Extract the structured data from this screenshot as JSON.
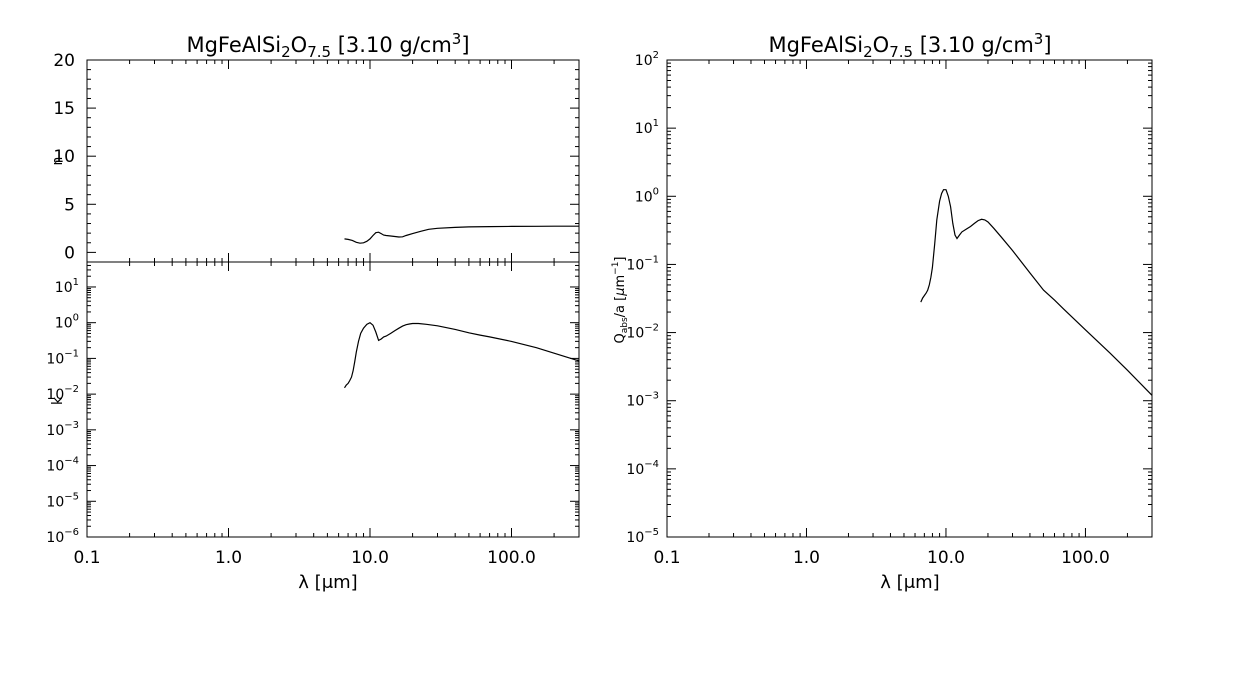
{
  "chart_data": [
    {
      "type": "line",
      "title": "MgFeAlSi2O7.5 [3.10 g/cm3]",
      "title_parts": {
        "pre": "MgFeAlSi",
        "sub1": "2",
        "mid": "O",
        "sub2": "7.5",
        "post": " [3.10 g/cm",
        "sup": "3",
        "end": "]"
      },
      "ylabel": "n",
      "xscale": "log",
      "xlim": [
        0.1,
        300
      ],
      "ylim": [
        -1,
        20
      ],
      "yticks": [
        0,
        5,
        10,
        15,
        20
      ],
      "ytick_labels": [
        "0",
        "5",
        "10",
        "15",
        "20"
      ],
      "series": [
        {
          "x": [
            6.6,
            7.0,
            7.5,
            8.0,
            8.5,
            9.0,
            9.5,
            10.0,
            10.5,
            11.0,
            11.5,
            12.0,
            12.5,
            13.0,
            14.0,
            15.0,
            16.0,
            17.0,
            18.0,
            20.0,
            23.0,
            26.0,
            30.0,
            40.0,
            50.0,
            70.0,
            100.0,
            150.0,
            200.0,
            300.0
          ],
          "y": [
            1.4,
            1.35,
            1.25,
            1.05,
            0.95,
            1.0,
            1.15,
            1.4,
            1.75,
            2.05,
            2.1,
            1.95,
            1.8,
            1.75,
            1.7,
            1.65,
            1.6,
            1.62,
            1.75,
            1.95,
            2.2,
            2.4,
            2.5,
            2.6,
            2.65,
            2.68,
            2.7,
            2.71,
            2.72,
            2.72
          ]
        }
      ]
    },
    {
      "type": "line",
      "xlabel": "λ [μm]",
      "ylabel": "k",
      "xscale": "log",
      "yscale": "log",
      "xlim": [
        0.1,
        300
      ],
      "ylim": [
        1e-06,
        50
      ],
      "xtick_labels": [
        "0.1",
        "1.0",
        "10.0",
        "100.0"
      ],
      "xticks": [
        0.1,
        1,
        10,
        100
      ],
      "yticks": [
        1e-06,
        1e-05,
        0.0001,
        0.001,
        0.01,
        0.1,
        1,
        10
      ],
      "ytick_labels": [
        {
          "b": "10",
          "e": "−6"
        },
        {
          "b": "10",
          "e": "−5"
        },
        {
          "b": "10",
          "e": "−4"
        },
        {
          "b": "10",
          "e": "−3"
        },
        {
          "b": "10",
          "e": "−2"
        },
        {
          "b": "10",
          "e": "−1"
        },
        {
          "b": "10",
          "e": "0"
        },
        {
          "b": "10",
          "e": "1"
        }
      ],
      "series": [
        {
          "x": [
            6.6,
            6.8,
            7.0,
            7.2,
            7.4,
            7.6,
            7.8,
            8.0,
            8.3,
            8.6,
            9.0,
            9.5,
            10.0,
            10.5,
            11.0,
            11.5,
            12.0,
            12.5,
            13.0,
            14.0,
            15.0,
            16.0,
            17.0,
            18.0,
            19.0,
            20.0,
            22.0,
            25.0,
            30.0,
            40.0,
            50.0,
            60.0,
            70.0,
            100.0,
            150.0,
            200.0,
            300.0
          ],
          "y": [
            0.015,
            0.018,
            0.02,
            0.024,
            0.03,
            0.045,
            0.08,
            0.15,
            0.3,
            0.5,
            0.7,
            0.9,
            1.0,
            0.85,
            0.55,
            0.32,
            0.35,
            0.4,
            0.42,
            0.5,
            0.6,
            0.7,
            0.8,
            0.88,
            0.92,
            0.95,
            0.95,
            0.9,
            0.82,
            0.65,
            0.52,
            0.45,
            0.4,
            0.3,
            0.2,
            0.14,
            0.085
          ]
        }
      ]
    },
    {
      "type": "line",
      "title": "MgFeAlSi2O7.5 [3.10 g/cm3]",
      "title_parts": {
        "pre": "MgFeAlSi",
        "sub1": "2",
        "mid": "O",
        "sub2": "7.5",
        "post": " [3.10 g/cm",
        "sup": "3",
        "end": "]"
      },
      "xlabel": "λ [μm]",
      "ylabel": "Qabs/a [μm−1]",
      "ylabel_parts": {
        "pre": "Q",
        "sub": "abs",
        "mid": "/a [",
        "mu": "μ",
        "unit": "m",
        "sup": "−1",
        "end": "]"
      },
      "xscale": "log",
      "yscale": "log",
      "xlim": [
        0.1,
        300
      ],
      "ylim": [
        1e-05,
        100
      ],
      "xtick_labels": [
        "0.1",
        "1.0",
        "10.0",
        "100.0"
      ],
      "xticks": [
        0.1,
        1,
        10,
        100
      ],
      "yticks": [
        1e-05,
        0.0001,
        0.001,
        0.01,
        0.1,
        1,
        10,
        100
      ],
      "ytick_labels": [
        {
          "b": "10",
          "e": "−5"
        },
        {
          "b": "10",
          "e": "−4"
        },
        {
          "b": "10",
          "e": "−3"
        },
        {
          "b": "10",
          "e": "−2"
        },
        {
          "b": "10",
          "e": "−1"
        },
        {
          "b": "10",
          "e": "0"
        },
        {
          "b": "10",
          "e": "1"
        },
        {
          "b": "10",
          "e": "2"
        }
      ],
      "series": [
        {
          "x": [
            6.6,
            6.8,
            7.0,
            7.2,
            7.4,
            7.6,
            7.8,
            8.0,
            8.3,
            8.6,
            9.0,
            9.3,
            9.6,
            10.0,
            10.4,
            10.8,
            11.2,
            11.6,
            12.0,
            12.5,
            13.0,
            14.0,
            15.0,
            16.0,
            17.0,
            18.0,
            19.0,
            20.0,
            22.0,
            25.0,
            30.0,
            40.0,
            50.0,
            60.0,
            70.0,
            100.0,
            150.0,
            200.0,
            300.0
          ],
          "y": [
            0.028,
            0.032,
            0.035,
            0.038,
            0.042,
            0.05,
            0.065,
            0.09,
            0.2,
            0.45,
            0.85,
            1.1,
            1.25,
            1.25,
            1.0,
            0.7,
            0.4,
            0.27,
            0.24,
            0.27,
            0.3,
            0.33,
            0.36,
            0.4,
            0.44,
            0.46,
            0.45,
            0.42,
            0.34,
            0.25,
            0.16,
            0.075,
            0.042,
            0.03,
            0.022,
            0.011,
            0.005,
            0.0028,
            0.0012
          ]
        }
      ]
    }
  ]
}
